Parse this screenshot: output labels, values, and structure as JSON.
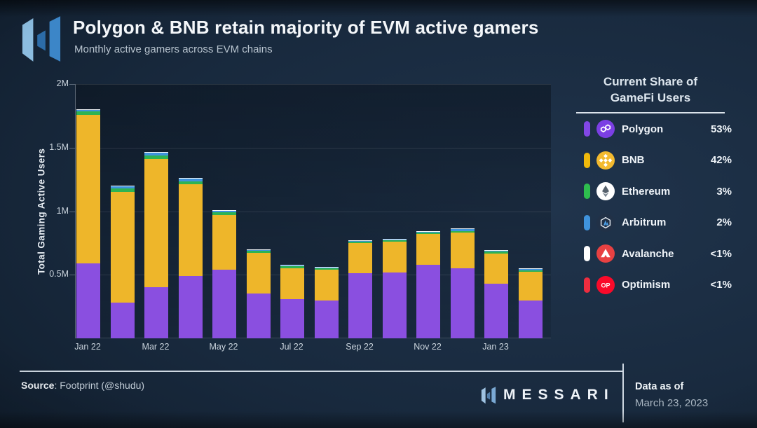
{
  "header": {
    "title": "Polygon & BNB retain majority of EVM active gamers",
    "subtitle": "Monthly active gamers across EVM chains"
  },
  "chart_data": {
    "type": "stacked_bar",
    "title": "Polygon & BNB retain majority of EVM active gamers",
    "subtitle": "Monthly active gamers across EVM chains",
    "ylabel": "Total Gaming Active Users",
    "xlabel": "",
    "ylim": [
      0,
      2000000
    ],
    "unit": "users (millions)",
    "grid": "horizontal, faint",
    "legend_position": "right panel",
    "months": [
      "Jan 22",
      "Feb 22",
      "Mar 22",
      "Apr 22",
      "May 22",
      "Jun 22",
      "Jul 22",
      "Aug 22",
      "Sep 22",
      "Oct 22",
      "Nov 22",
      "Dec 22",
      "Jan 23",
      "Feb 23"
    ],
    "x_tick_labels": [
      "Jan 22",
      "Mar 22",
      "May 22",
      "Jul 22",
      "Sep 22",
      "Nov 22",
      "Jan 23"
    ],
    "x_tick_indices": [
      0,
      2,
      4,
      6,
      8,
      10,
      12
    ],
    "y_ticks": [
      {
        "label": "0.5M",
        "value": 0.5
      },
      {
        "label": "1M",
        "value": 1
      },
      {
        "label": "1.5M",
        "value": 1.5
      },
      {
        "label": "2M",
        "value": 2
      }
    ],
    "series": [
      {
        "name": "Polygon",
        "color": "#8a4fe0",
        "values": [
          0.59,
          0.28,
          0.4,
          0.49,
          0.54,
          0.35,
          0.31,
          0.3,
          0.51,
          0.52,
          0.58,
          0.55,
          0.43,
          0.3
        ]
      },
      {
        "name": "BNB",
        "color": "#eeb62a",
        "values": [
          1.17,
          0.87,
          1.01,
          0.72,
          0.43,
          0.32,
          0.24,
          0.24,
          0.235,
          0.24,
          0.24,
          0.28,
          0.235,
          0.225
        ]
      },
      {
        "name": "Ethereum",
        "color": "#2eb353",
        "values": [
          0.03,
          0.03,
          0.025,
          0.02,
          0.02,
          0.015,
          0.015,
          0.012,
          0.01,
          0.01,
          0.012,
          0.012,
          0.015,
          0.012
        ]
      },
      {
        "name": "Arbitrum",
        "color": "#3f93dc",
        "values": [
          0.01,
          0.015,
          0.02,
          0.02,
          0.01,
          0.008,
          0.008,
          0.005,
          0.005,
          0.005,
          0.008,
          0.015,
          0.008,
          0.012
        ]
      },
      {
        "name": "Avalanche",
        "color": "#f2f5f7",
        "values": [
          0.005,
          0.005,
          0.008,
          0.005,
          0.004,
          0.004,
          0.004,
          0.003,
          0.003,
          0.003,
          0.004,
          0.004,
          0.004,
          0.004
        ]
      }
    ]
  },
  "legend": {
    "title_line1": "Current Share of",
    "title_line2": "GameFi Users",
    "items": [
      {
        "name": "Polygon",
        "share": "53%",
        "pill_color": "#8247e5",
        "icon": "polygon-icon",
        "icon_bg": "#7b3fe4"
      },
      {
        "name": "BNB",
        "share": "42%",
        "pill_color": "#f0b90b",
        "icon": "bnb-icon",
        "icon_bg": "#f3ba2f"
      },
      {
        "name": "Ethereum",
        "share": "3%",
        "pill_color": "#2ebd4e",
        "icon": "ethereum-icon",
        "icon_bg": "#ffffff"
      },
      {
        "name": "Arbitrum",
        "share": "2%",
        "pill_color": "#3f93dc",
        "icon": "arbitrum-icon",
        "icon_bg": "#213147"
      },
      {
        "name": "Avalanche",
        "share": "<1%",
        "pill_color": "#ffffff",
        "icon": "avalanche-icon",
        "icon_bg": "#e84142"
      },
      {
        "name": "Optimism",
        "share": "<1%",
        "pill_color": "#ee2d3f",
        "icon": "optimism-icon",
        "icon_bg": "#fa0a2a"
      }
    ]
  },
  "footer": {
    "source_label": "Source",
    "source_value": ": Footprint (@shudu)",
    "brand": "MESSARI",
    "data_as_of_label": "Data as of",
    "data_as_of_date": "March 23, 2023"
  }
}
